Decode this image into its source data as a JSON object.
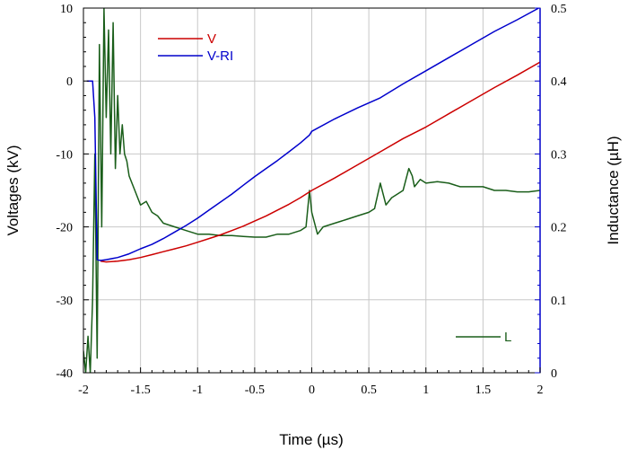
{
  "chart_data": {
    "type": "line",
    "xlabel": "Time (µs)",
    "ylabel": "Voltages (kV)",
    "y2label": "Inductance (µH)",
    "xlim": [
      -2,
      2
    ],
    "ylim": [
      -40,
      10
    ],
    "y2lim": [
      0,
      0.5
    ],
    "x_ticks": [
      -2,
      -1.5,
      -1,
      -0.5,
      0,
      0.5,
      1,
      1.5,
      2
    ],
    "y_ticks": [
      -40,
      -30,
      -20,
      -10,
      0,
      10
    ],
    "y2_ticks": [
      0,
      0.1,
      0.2,
      0.3,
      0.4,
      0.5
    ],
    "x_tick_labels": [
      "-2",
      "-1.5",
      "-1",
      "-0.5",
      "0",
      "0.5",
      "1",
      "1.5",
      "2"
    ],
    "y_tick_labels": [
      "-40",
      "-30",
      "-20",
      "-10",
      "0",
      "10"
    ],
    "y2_tick_labels": [
      "0",
      "0.1",
      "0.2",
      "0.3",
      "0.4",
      "0.5"
    ],
    "grid": true,
    "series": [
      {
        "name": "V",
        "axis": "left",
        "color": "#cc0000",
        "x": [
          -1.85,
          -1.8,
          -1.7,
          -1.6,
          -1.5,
          -1.4,
          -1.3,
          -1.2,
          -1.1,
          -1.0,
          -0.9,
          -0.8,
          -0.7,
          -0.6,
          -0.5,
          -0.4,
          -0.3,
          -0.2,
          -0.1,
          0.0,
          0.2,
          0.4,
          0.6,
          0.8,
          1.0,
          1.2,
          1.4,
          1.6,
          1.8,
          2.0
        ],
        "y": [
          -24.7,
          -24.8,
          -24.7,
          -24.5,
          -24.2,
          -23.8,
          -23.4,
          -23.0,
          -22.6,
          -22.1,
          -21.6,
          -21.1,
          -20.5,
          -19.9,
          -19.2,
          -18.5,
          -17.7,
          -16.9,
          -16.0,
          -15.0,
          -13.3,
          -11.5,
          -9.7,
          -7.9,
          -6.3,
          -4.5,
          -2.7,
          -0.9,
          0.8,
          2.6
        ]
      },
      {
        "name": "V-RI",
        "axis": "left",
        "color": "#0000cc",
        "x": [
          -1.97,
          -1.92,
          -1.9,
          -1.88,
          -1.85,
          -1.8,
          -1.7,
          -1.6,
          -1.5,
          -1.4,
          -1.3,
          -1.2,
          -1.1,
          -1.0,
          -0.9,
          -0.8,
          -0.7,
          -0.6,
          -0.5,
          -0.4,
          -0.3,
          -0.2,
          -0.1,
          -0.02,
          0.0,
          0.2,
          0.4,
          0.6,
          0.8,
          1.0,
          1.2,
          1.4,
          1.6,
          1.8,
          2.0
        ],
        "y": [
          0,
          0,
          -5,
          -24.5,
          -24.6,
          -24.5,
          -24.2,
          -23.7,
          -23.0,
          -22.4,
          -21.6,
          -20.7,
          -19.8,
          -18.8,
          -17.7,
          -16.6,
          -15.5,
          -14.3,
          -13.1,
          -12.0,
          -10.9,
          -9.7,
          -8.5,
          -7.4,
          -6.9,
          -5.2,
          -3.7,
          -2.3,
          -0.4,
          1.4,
          3.2,
          5.0,
          6.8,
          8.4,
          10.1
        ]
      },
      {
        "name": "L",
        "axis": "right",
        "color": "#1a5e1a",
        "x": [
          -2.0,
          -1.98,
          -1.96,
          -1.94,
          -1.92,
          -1.9,
          -1.88,
          -1.86,
          -1.84,
          -1.82,
          -1.8,
          -1.78,
          -1.76,
          -1.74,
          -1.72,
          -1.7,
          -1.68,
          -1.66,
          -1.64,
          -1.62,
          -1.6,
          -1.55,
          -1.5,
          -1.45,
          -1.4,
          -1.35,
          -1.3,
          -1.2,
          -1.1,
          -1.0,
          -0.9,
          -0.8,
          -0.7,
          -0.6,
          -0.5,
          -0.4,
          -0.3,
          -0.2,
          -0.1,
          -0.05,
          -0.02,
          0.0,
          0.05,
          0.1,
          0.2,
          0.3,
          0.4,
          0.5,
          0.55,
          0.6,
          0.65,
          0.7,
          0.75,
          0.8,
          0.85,
          0.88,
          0.9,
          0.95,
          1.0,
          1.1,
          1.2,
          1.3,
          1.4,
          1.5,
          1.6,
          1.7,
          1.8,
          1.9,
          2.0
        ],
        "y": [
          0.03,
          0.0,
          0.05,
          0.0,
          0.1,
          0.3,
          0.02,
          0.45,
          0.2,
          0.5,
          0.35,
          0.47,
          0.3,
          0.48,
          0.28,
          0.38,
          0.3,
          0.34,
          0.3,
          0.29,
          0.27,
          0.25,
          0.23,
          0.235,
          0.22,
          0.215,
          0.205,
          0.2,
          0.195,
          0.19,
          0.19,
          0.188,
          0.188,
          0.187,
          0.186,
          0.186,
          0.19,
          0.19,
          0.195,
          0.2,
          0.25,
          0.22,
          0.19,
          0.2,
          0.205,
          0.21,
          0.215,
          0.22,
          0.225,
          0.26,
          0.23,
          0.24,
          0.245,
          0.25,
          0.28,
          0.27,
          0.255,
          0.265,
          0.26,
          0.262,
          0.26,
          0.255,
          0.255,
          0.255,
          0.25,
          0.25,
          0.248,
          0.248,
          0.25
        ]
      }
    ]
  }
}
